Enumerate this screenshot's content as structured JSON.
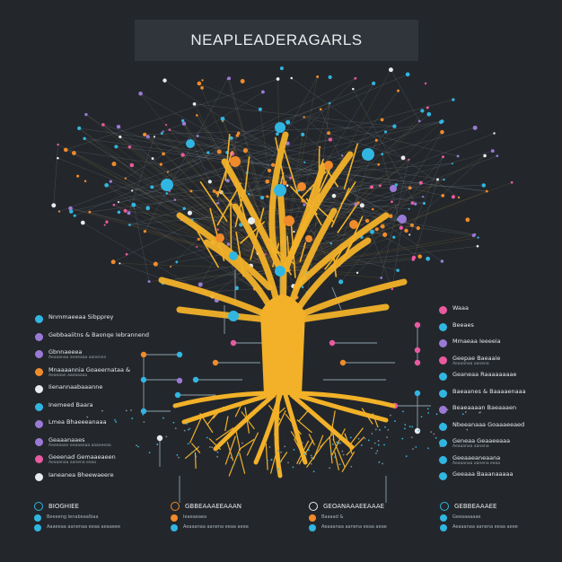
{
  "header": {
    "title": "NEAPLEADERAGARLS"
  },
  "colors": {
    "background": "#23272b",
    "trunk": "#f2b129",
    "cyan": "#31b6e1",
    "orange": "#f08a2a",
    "pink": "#e95aa0",
    "purple": "#9a7ad6",
    "white": "#e8ecef"
  },
  "legend_left": [
    {
      "label": "Nnmmaeeaa Sibpprey",
      "color": "#31b6e1"
    },
    {
      "label": "Gebbaaiitns & Baonqe Iebrannend",
      "color": "#9a7ad6"
    },
    {
      "label": "Gbnnaeeea",
      "color": "#9a7ad6",
      "sub": "Aeaaanaa aneeaaa aanennn"
    },
    {
      "label": "Mnaaaannia Goaeernataa &",
      "color": "#f08a2a",
      "sub": "Aeaeaan aaeaaaaa"
    },
    {
      "label": "Iienannaabaaanne",
      "color": "#e8ecef"
    },
    {
      "label": "Inemeed Baara",
      "color": "#31b6e1"
    },
    {
      "label": "Lmea Bhaeeeanaaa",
      "color": "#9a7ad6"
    },
    {
      "label": "Geaaanaaes",
      "color": "#9a7ad6",
      "sub": "Aaeeaaan eeaaanaa aaaeeeaa"
    },
    {
      "label": "Geeenad Gemaaeaeen",
      "color": "#e95aa0",
      "sub": "Aeaaanaa aanena eeaa"
    },
    {
      "label": "Ianeanea Bheewaeere",
      "color": "#e8ecef"
    }
  ],
  "legend_right": [
    {
      "label": "Waaa",
      "color": "#e95aa0"
    },
    {
      "label": "Beeaes",
      "color": "#31b6e1"
    },
    {
      "label": "Mmaeaa Ieeeeia",
      "color": "#9a7ad6"
    },
    {
      "label": "Geepae Baeaaie",
      "color": "#e95aa0",
      "sub": "Aeaaanaa aanena"
    },
    {
      "label": "Geaneaa Raaaaaaaae",
      "color": "#31b6e1"
    },
    {
      "label": "Baeaanes & Baaaaenaaa",
      "color": "#31b6e1"
    },
    {
      "label": "Beaeaaaan Baeaaaen",
      "color": "#9a7ad6"
    },
    {
      "label": "Nbeeanaaa Goaaaeeaed",
      "color": "#31b6e1"
    },
    {
      "label": "Geneaa Geaaeeaaa",
      "color": "#31b6e1",
      "sub": "Aeaaanaa aanena"
    },
    {
      "label": "Geeaaeaneaana",
      "color": "#31b6e1",
      "sub": "Aeaaanaa aanena eeaa"
    },
    {
      "label": "Geeaaa Baaanaaaaa",
      "color": "#31b6e1"
    }
  ],
  "bottom": [
    {
      "head": "BIOGHIEE",
      "color": "#31b6e1",
      "rows": [
        {
          "t": "Beeeeng Ienabeaalbaa",
          "c": "#31b6e1"
        },
        {
          "t": "Aaaeeaa aanenaa eeaa aeaaeee",
          "c": "#31b6e1"
        }
      ]
    },
    {
      "head": "GBBEAAAEEAAAN",
      "color": "#f08a2a",
      "rows": [
        {
          "t": "Ieaeaeaea",
          "c": "#f08a2a"
        },
        {
          "t": "Aeaaanaa aanena eeaa aeea",
          "c": "#31b6e1"
        }
      ]
    },
    {
      "head": "GEOANAAAEEAAAE",
      "color": "#e8ecef",
      "rows": [
        {
          "t": "Baaaad &",
          "c": "#f08a2a"
        },
        {
          "t": "Aeaaanaa aanena eeaa aeae",
          "c": "#31b6e1"
        }
      ]
    },
    {
      "head": "GEBBEAAAEE",
      "color": "#31b6e1",
      "rows": [
        {
          "t": "Geeaaaaaae",
          "c": "#31b6e1"
        },
        {
          "t": "Aeaaanaa aanena eeaa aeee",
          "c": "#31b6e1"
        }
      ]
    }
  ]
}
